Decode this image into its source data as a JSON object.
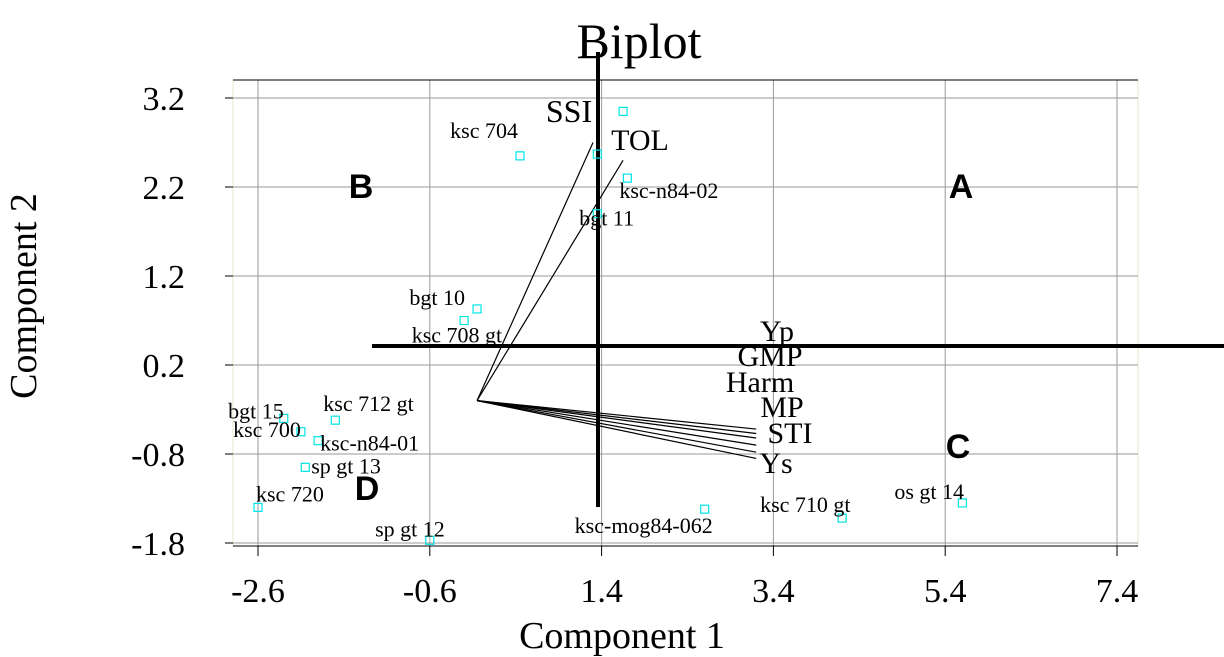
{
  "chart_data": {
    "type": "scatter",
    "title": "Biplot",
    "xlabel": "Component 1",
    "ylabel": "Component 2",
    "xlim": [
      -2.8,
      7.6
    ],
    "ylim": [
      -1.9,
      3.55
    ],
    "xticks": [
      "-2.6",
      "-0.6",
      "1.4",
      "3.4",
      "5.4",
      "7.4"
    ],
    "yticks": [
      "3.2",
      "2.2",
      "1.2",
      "0.2",
      "-0.8",
      "-1.8"
    ],
    "grid": true,
    "point_color": "#00e5e5",
    "points": [
      {
        "label": "ksc 704",
        "x": 0.45,
        "y": 2.55
      },
      {
        "label": "",
        "x": 1.65,
        "y": 3.05
      },
      {
        "label": "",
        "x": 1.35,
        "y": 2.57
      },
      {
        "label": "ksc-n84-02",
        "x": 1.7,
        "y": 2.3
      },
      {
        "label": "bgt 11",
        "x": 1.35,
        "y": 1.9
      },
      {
        "label": "bgt 10",
        "x": -0.05,
        "y": 0.83
      },
      {
        "label": "ksc 708 gt",
        "x": -0.2,
        "y": 0.7
      },
      {
        "label": "bgt 15",
        "x": -2.3,
        "y": -0.4
      },
      {
        "label": "ksc 712 gt",
        "x": -1.7,
        "y": -0.42
      },
      {
        "label": "ksc 700",
        "x": -2.1,
        "y": -0.55
      },
      {
        "label": "ksc-n84-01",
        "x": -1.9,
        "y": -0.65
      },
      {
        "label": "sp gt 13",
        "x": -2.05,
        "y": -0.95
      },
      {
        "label": "ksc 720",
        "x": -2.6,
        "y": -1.4
      },
      {
        "label": "sp gt 12",
        "x": -0.6,
        "y": -1.77
      },
      {
        "label": "ksc-mog84-062",
        "x": 2.6,
        "y": -1.42
      },
      {
        "label": "ksc 710 gt",
        "x": 4.2,
        "y": -1.52
      },
      {
        "label": "os gt 14",
        "x": 5.6,
        "y": -1.35
      }
    ],
    "vectors": [
      {
        "label": "SSI",
        "x": 1.3,
        "y": 2.7
      },
      {
        "label": "TOL",
        "x": 1.65,
        "y": 2.5
      },
      {
        "label": "Yp",
        "x": 3.2,
        "y": -0.52
      },
      {
        "label": "GMP",
        "x": 3.2,
        "y": -0.57
      },
      {
        "label": "Harm",
        "x": 3.2,
        "y": -0.62
      },
      {
        "label": "MP",
        "x": 3.2,
        "y": -0.7
      },
      {
        "label": "STI",
        "x": 3.2,
        "y": -0.78
      },
      {
        "label": "Ys",
        "x": 3.2,
        "y": -0.85
      }
    ],
    "vector_origin": {
      "x": -0.05,
      "y": -0.2
    },
    "quadrants": [
      "A",
      "B",
      "C",
      "D"
    ]
  }
}
